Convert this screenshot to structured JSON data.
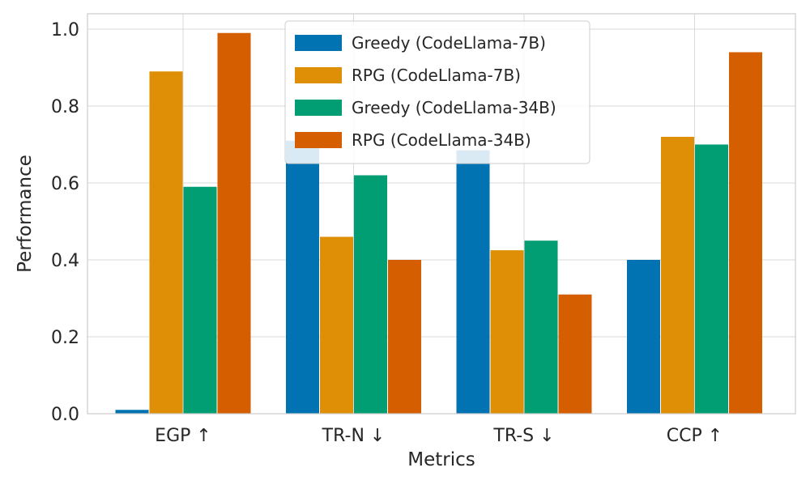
{
  "chart_data": {
    "type": "bar",
    "title": "",
    "xlabel": "Metrics",
    "ylabel": "Performance",
    "ylim": [
      0,
      1.0
    ],
    "yticks": [
      0.0,
      0.2,
      0.4,
      0.6,
      0.8,
      1.0
    ],
    "ytick_labels": [
      "0.0",
      "0.2",
      "0.4",
      "0.6",
      "0.8",
      "1.0"
    ],
    "categories": [
      "EGP ↑",
      "TR-N ↓",
      "TR-S ↓",
      "CCP ↑"
    ],
    "grid": true,
    "legend_position": "top-center",
    "series": [
      {
        "name": "Greedy (CodeLlama-7B)",
        "color": "#0173b2",
        "values": [
          0.01,
          0.71,
          0.685,
          0.4
        ]
      },
      {
        "name": "RPG (CodeLlama-7B)",
        "color": "#de8f05",
        "values": [
          0.89,
          0.46,
          0.425,
          0.72
        ]
      },
      {
        "name": "Greedy (CodeLlama-34B)",
        "color": "#029e73",
        "values": [
          0.59,
          0.62,
          0.45,
          0.7
        ]
      },
      {
        "name": "RPG (CodeLlama-34B)",
        "color": "#d55e00",
        "values": [
          0.99,
          0.4,
          0.31,
          0.94
        ]
      }
    ]
  }
}
